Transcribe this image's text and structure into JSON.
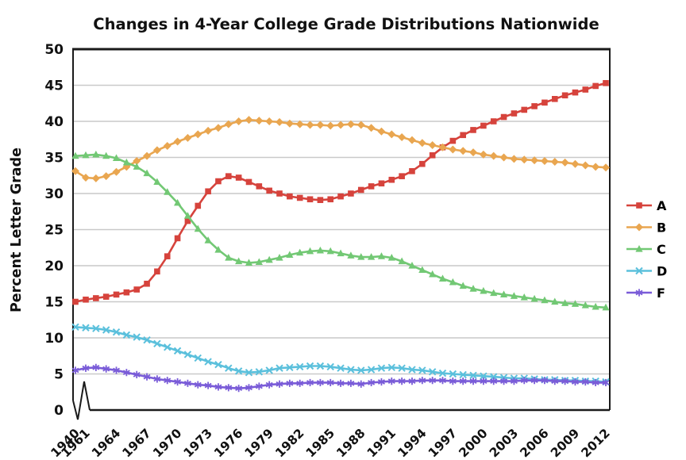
{
  "page": {
    "background": "#ffffff"
  },
  "chart_data": {
    "type": "line",
    "title": "Changes in 4-Year College Grade Distributions Nationwide",
    "ylabel": "Percent Letter Grade",
    "xlabel": "",
    "ylim": [
      0,
      50
    ],
    "ytick_step": 5,
    "grid": true,
    "legend_position": "right",
    "x_axis_break_between": [
      "1940",
      "1961"
    ],
    "x_tick_labels": [
      "1940",
      "1961",
      "1964",
      "1967",
      "1970",
      "1973",
      "1976",
      "1979",
      "1982",
      "1985",
      "1988",
      "1991",
      "1994",
      "1997",
      "2000",
      "2003",
      "2006",
      "2009",
      "2012"
    ],
    "years": [
      1940,
      1961,
      1962,
      1963,
      1964,
      1965,
      1966,
      1967,
      1968,
      1969,
      1970,
      1971,
      1972,
      1973,
      1974,
      1975,
      1976,
      1977,
      1978,
      1979,
      1980,
      1981,
      1982,
      1983,
      1984,
      1985,
      1986,
      1987,
      1988,
      1989,
      1990,
      1991,
      1992,
      1993,
      1994,
      1995,
      1996,
      1997,
      1998,
      1999,
      2000,
      2001,
      2002,
      2003,
      2004,
      2005,
      2006,
      2007,
      2008,
      2009,
      2010,
      2011,
      2012
    ],
    "axis_color": "#1a1a1a",
    "grid_color": "#c9c9c9",
    "series": [
      {
        "name": "A",
        "marker": "square",
        "color": "#d6433c",
        "values": [
          15.0,
          15.3,
          15.5,
          15.7,
          16.0,
          16.3,
          16.7,
          17.5,
          19.2,
          21.3,
          23.8,
          26.2,
          28.3,
          30.3,
          31.7,
          32.4,
          32.2,
          31.6,
          31.0,
          30.4,
          30.0,
          29.6,
          29.4,
          29.2,
          29.1,
          29.2,
          29.6,
          30.0,
          30.5,
          31.0,
          31.4,
          31.9,
          32.4,
          33.1,
          34.1,
          35.3,
          36.4,
          37.3,
          38.1,
          38.8,
          39.4,
          40.0,
          40.6,
          41.1,
          41.6,
          42.1,
          42.6,
          43.1,
          43.6,
          44.0,
          44.4,
          44.9,
          45.3
        ]
      },
      {
        "name": "B",
        "marker": "diamond",
        "color": "#e9a650",
        "values": [
          33.1,
          32.2,
          32.1,
          32.4,
          33.0,
          33.7,
          34.5,
          35.2,
          36.0,
          36.6,
          37.2,
          37.7,
          38.2,
          38.7,
          39.1,
          39.6,
          40.0,
          40.2,
          40.1,
          40.0,
          39.9,
          39.7,
          39.6,
          39.5,
          39.5,
          39.4,
          39.5,
          39.6,
          39.5,
          39.1,
          38.6,
          38.2,
          37.8,
          37.4,
          37.0,
          36.7,
          36.4,
          36.1,
          35.9,
          35.7,
          35.4,
          35.2,
          35.0,
          34.8,
          34.7,
          34.6,
          34.5,
          34.4,
          34.3,
          34.1,
          33.9,
          33.7,
          33.6
        ]
      },
      {
        "name": "C",
        "marker": "triangle",
        "color": "#72c874",
        "values": [
          35.2,
          35.3,
          35.4,
          35.2,
          34.9,
          34.3,
          33.7,
          32.8,
          31.6,
          30.2,
          28.7,
          26.9,
          25.1,
          23.5,
          22.2,
          21.1,
          20.6,
          20.4,
          20.5,
          20.8,
          21.1,
          21.5,
          21.8,
          22.0,
          22.1,
          22.0,
          21.7,
          21.4,
          21.2,
          21.2,
          21.3,
          21.1,
          20.6,
          20.0,
          19.4,
          18.8,
          18.2,
          17.7,
          17.2,
          16.8,
          16.5,
          16.2,
          16.0,
          15.8,
          15.6,
          15.4,
          15.2,
          15.0,
          14.8,
          14.7,
          14.5,
          14.3,
          14.2
        ]
      },
      {
        "name": "D",
        "marker": "x",
        "color": "#5bc0dc",
        "values": [
          11.5,
          11.4,
          11.3,
          11.1,
          10.8,
          10.4,
          10.1,
          9.7,
          9.2,
          8.7,
          8.2,
          7.7,
          7.2,
          6.7,
          6.3,
          5.8,
          5.4,
          5.2,
          5.3,
          5.5,
          5.8,
          5.9,
          6.0,
          6.1,
          6.1,
          6.0,
          5.8,
          5.6,
          5.5,
          5.6,
          5.8,
          5.9,
          5.8,
          5.6,
          5.5,
          5.3,
          5.1,
          5.0,
          4.9,
          4.8,
          4.7,
          4.6,
          4.5,
          4.4,
          4.4,
          4.3,
          4.2,
          4.2,
          4.1,
          4.1,
          4.0,
          4.0,
          3.9
        ]
      },
      {
        "name": "F",
        "marker": "asterisk",
        "color": "#7a5cd8",
        "values": [
          5.5,
          5.8,
          5.9,
          5.7,
          5.5,
          5.2,
          4.9,
          4.6,
          4.3,
          4.1,
          3.9,
          3.7,
          3.5,
          3.4,
          3.2,
          3.1,
          3.0,
          3.1,
          3.3,
          3.5,
          3.6,
          3.7,
          3.7,
          3.8,
          3.8,
          3.8,
          3.7,
          3.7,
          3.6,
          3.8,
          3.9,
          4.0,
          4.0,
          4.0,
          4.1,
          4.1,
          4.1,
          4.0,
          4.0,
          4.0,
          4.0,
          4.0,
          4.0,
          4.0,
          4.1,
          4.1,
          4.1,
          4.0,
          4.0,
          3.9,
          3.9,
          3.8,
          3.8
        ]
      }
    ]
  }
}
